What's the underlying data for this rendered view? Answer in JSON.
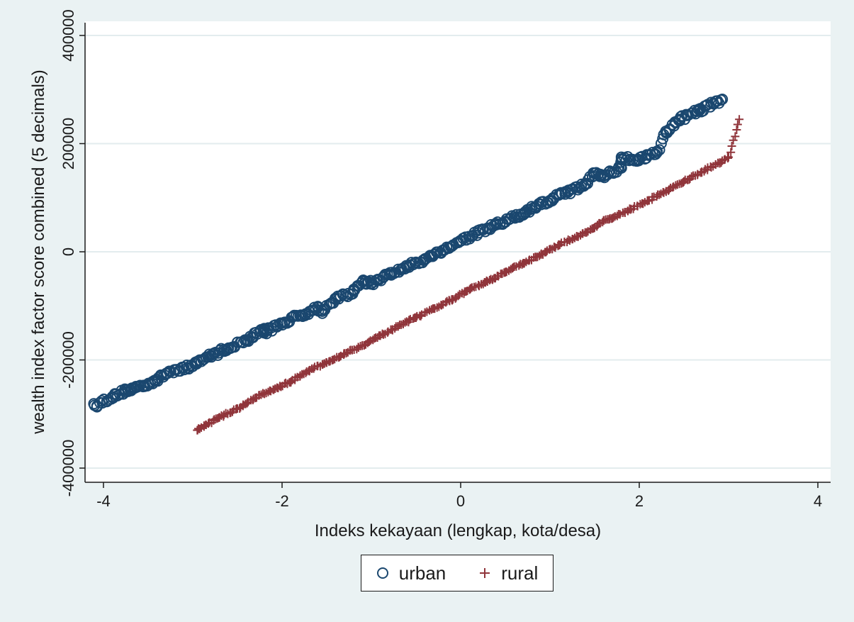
{
  "chart_data": {
    "type": "scatter",
    "title": "",
    "xlabel": "Indeks kekayaan (lengkap, kota/desa)",
    "ylabel": "wealth index factor score combined (5 decimals)",
    "xlim": [
      -4.2,
      4.1
    ],
    "ylim": [
      -425000,
      425000
    ],
    "x_ticks": [
      -4,
      -2,
      0,
      2,
      4
    ],
    "x_tick_labels": [
      "-4",
      "-2",
      "0",
      "2",
      "4"
    ],
    "y_ticks": [
      -400000,
      -200000,
      0,
      200000,
      400000
    ],
    "y_tick_labels": [
      "-400000",
      "-200000",
      "0",
      "200000",
      "400000"
    ],
    "grid": "horizontal",
    "legend_position": "bottom",
    "background": "#eaf2f3",
    "plot_background": "#ffffff",
    "grid_color": "#e3ecee",
    "series": [
      {
        "name": "urban",
        "marker": "circle",
        "color": "#1a476f",
        "range_x": [
          -4.1,
          2.93
        ],
        "points": [
          [
            -4.1,
            -284000
          ],
          [
            -3.9,
            -268000
          ],
          [
            -3.75,
            -256000
          ],
          [
            -3.7,
            -255000
          ],
          [
            -3.65,
            -252000
          ],
          [
            -3.55,
            -247000
          ],
          [
            -3.45,
            -240000
          ],
          [
            -3.4,
            -236000
          ],
          [
            -3.3,
            -225000
          ],
          [
            -3.2,
            -218000
          ],
          [
            -3.0,
            -212000
          ],
          [
            -2.95,
            -203000
          ],
          [
            -2.8,
            -192000
          ],
          [
            -2.6,
            -178000
          ],
          [
            -2.4,
            -163000
          ],
          [
            -2.2,
            -142000
          ],
          [
            -2.2,
            -150000
          ],
          [
            -2.0,
            -132000
          ],
          [
            -1.8,
            -118000
          ],
          [
            -1.6,
            -103000
          ],
          [
            -1.55,
            -110000
          ],
          [
            -1.4,
            -88000
          ],
          [
            -1.2,
            -73000
          ],
          [
            -1.1,
            -55000
          ],
          [
            -1.0,
            -58000
          ],
          [
            -0.8,
            -42000
          ],
          [
            -0.6,
            -28000
          ],
          [
            -0.4,
            -13000
          ],
          [
            -0.3,
            -5000
          ],
          [
            -0.2,
            3000
          ],
          [
            0.0,
            20000
          ],
          [
            0.2,
            35000
          ],
          [
            0.4,
            50000
          ],
          [
            0.5,
            56000
          ],
          [
            0.6,
            65000
          ],
          [
            0.7,
            68000
          ],
          [
            0.8,
            80000
          ],
          [
            1.0,
            95000
          ],
          [
            1.1,
            105000
          ],
          [
            1.2,
            110000
          ],
          [
            1.4,
            125000
          ],
          [
            1.5,
            145000
          ],
          [
            1.6,
            140000
          ],
          [
            1.8,
            155000
          ],
          [
            1.8,
            175000
          ],
          [
            2.0,
            170000
          ],
          [
            2.2,
            186000
          ],
          [
            2.3,
            220000
          ],
          [
            2.4,
            240000
          ],
          [
            2.45,
            245000
          ],
          [
            2.65,
            260000
          ],
          [
            2.68,
            262000
          ],
          [
            2.93,
            282000
          ]
        ]
      },
      {
        "name": "rural",
        "marker": "plus",
        "color": "#90353b",
        "range_x": [
          -2.95,
          3.12
        ],
        "points": [
          [
            -2.95,
            -330000
          ],
          [
            -2.85,
            -320000
          ],
          [
            -2.7,
            -306000
          ],
          [
            -2.5,
            -290000
          ],
          [
            -2.3,
            -270000
          ],
          [
            -2.1,
            -255000
          ],
          [
            -1.9,
            -240000
          ],
          [
            -1.7,
            -220000
          ],
          [
            -1.5,
            -205000
          ],
          [
            -1.3,
            -188000
          ],
          [
            -1.1,
            -173000
          ],
          [
            -0.9,
            -155000
          ],
          [
            -0.7,
            -138000
          ],
          [
            -0.5,
            -122000
          ],
          [
            -0.3,
            -105000
          ],
          [
            -0.1,
            -88000
          ],
          [
            0.1,
            -70000
          ],
          [
            0.3,
            -55000
          ],
          [
            0.5,
            -38000
          ],
          [
            0.7,
            -21000
          ],
          [
            0.9,
            -5000
          ],
          [
            1.1,
            12000
          ],
          [
            1.3,
            28000
          ],
          [
            1.5,
            45000
          ],
          [
            1.6,
            58000
          ],
          [
            1.7,
            62000
          ],
          [
            1.9,
            78000
          ],
          [
            2.1,
            95000
          ],
          [
            2.3,
            112000
          ],
          [
            2.5,
            130000
          ],
          [
            2.7,
            148000
          ],
          [
            2.9,
            165000
          ],
          [
            3.0,
            175000
          ],
          [
            3.12,
            245000
          ]
        ]
      }
    ]
  },
  "legend": {
    "items": [
      {
        "label": "urban",
        "symbol": "circle-icon",
        "color": "#1a476f"
      },
      {
        "label": "rural",
        "symbol": "plus-icon",
        "color": "#90353b"
      }
    ]
  }
}
